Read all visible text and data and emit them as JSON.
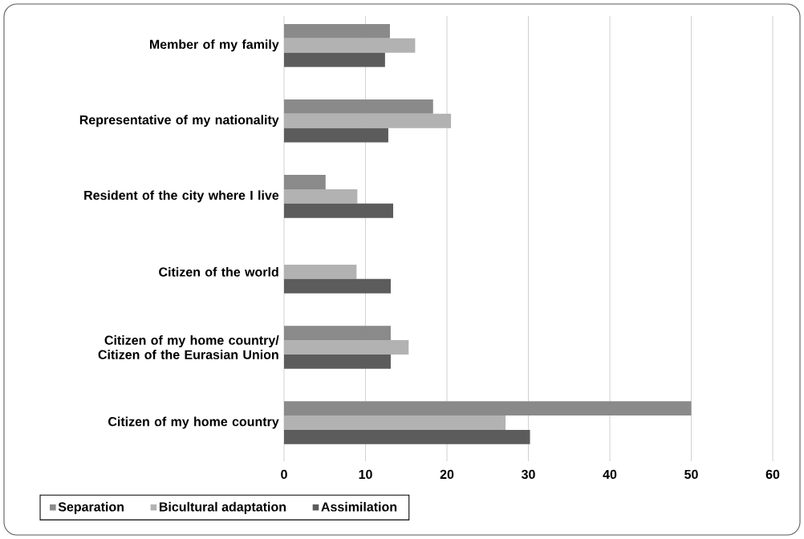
{
  "chart_data": {
    "type": "bar",
    "orientation": "horizontal",
    "categories": [
      "Member of my family",
      "Representative of my nationality",
      "Resident of the city where I live",
      "Citizen of the world",
      "Citizen of my home country/ Citizen of the Eurasian Union",
      "Citizen of my home country"
    ],
    "series": [
      {
        "name": "Separation",
        "color": "#8a8a8a",
        "values": [
          13.0,
          18.3,
          5.1,
          0,
          13.1,
          50.0
        ]
      },
      {
        "name": "Bicultural adaptation",
        "color": "#b2b2b2",
        "values": [
          16.1,
          20.5,
          9.0,
          8.9,
          15.3,
          27.2
        ]
      },
      {
        "name": "Assimilation",
        "color": "#5c5c5c",
        "values": [
          12.4,
          12.8,
          13.4,
          13.1,
          13.1,
          30.2
        ]
      }
    ],
    "xlim": [
      0,
      60
    ],
    "xticks": [
      0,
      10,
      20,
      30,
      40,
      50,
      60
    ],
    "grid": "x",
    "legend": "bottom"
  }
}
